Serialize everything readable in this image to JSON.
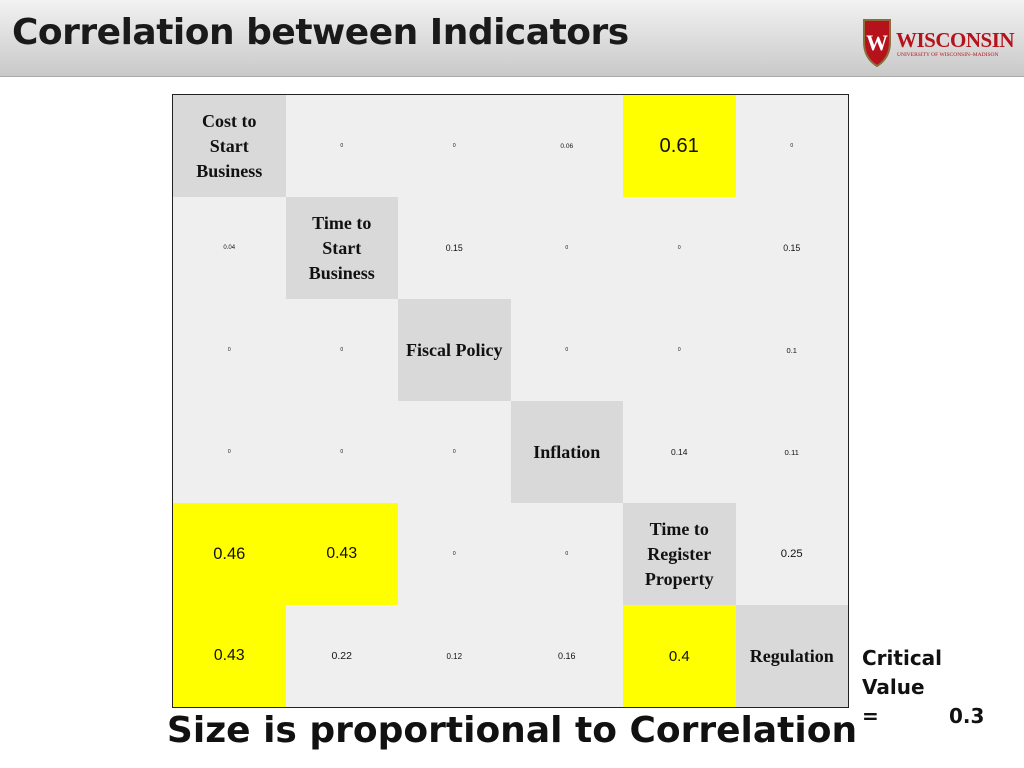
{
  "header": {
    "title": "Correlation between Indicators",
    "logo": {
      "name": "WISCONSIN",
      "subtitle": "UNIVERSITY OF WISCONSIN–MADISON"
    }
  },
  "matrix": {
    "highlight_color": "#ffff00",
    "rows": [
      [
        "Cost to Start Business",
        0,
        0,
        0.06,
        0.61,
        0
      ],
      [
        0.04,
        "Time to Start Business",
        0.15,
        0,
        0,
        0.15
      ],
      [
        0,
        0,
        "Fiscal Policy",
        0,
        0,
        0.1
      ],
      [
        0,
        0,
        0,
        "Inflation",
        0.14,
        0.11
      ],
      [
        0.46,
        0.43,
        0,
        0,
        "Time to Register Property",
        0.25
      ],
      [
        0.43,
        0.22,
        0.12,
        0.16,
        0.4,
        "Regulation"
      ]
    ]
  },
  "note": {
    "label": "Critical Value =",
    "value": 0.3
  },
  "caption": "Size is proportional to Correlation"
}
